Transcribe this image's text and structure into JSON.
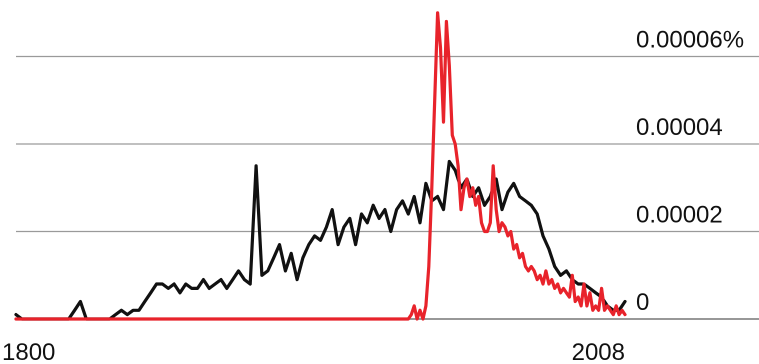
{
  "chart_data": {
    "type": "line",
    "x_tick_labels": [
      "1800",
      "2008"
    ],
    "x_range": [
      1800,
      2008
    ],
    "y_tick_labels": [
      "0",
      "0.00002",
      "0.00004",
      "0.00006%"
    ],
    "y_ticks": [
      0,
      2e-05,
      4e-05,
      6e-05
    ],
    "ylim": [
      0,
      7.1e-05
    ],
    "grid": true,
    "legend": "none",
    "series": [
      {
        "color": "#111111",
        "x": [
          1800,
          1802,
          1804,
          1806,
          1808,
          1810,
          1812,
          1814,
          1816,
          1818,
          1820,
          1822,
          1824,
          1826,
          1828,
          1830,
          1832,
          1834,
          1836,
          1838,
          1840,
          1842,
          1844,
          1846,
          1848,
          1850,
          1852,
          1854,
          1856,
          1858,
          1860,
          1862,
          1864,
          1866,
          1868,
          1870,
          1872,
          1874,
          1876,
          1878,
          1880,
          1882,
          1884,
          1886,
          1888,
          1890,
          1892,
          1894,
          1896,
          1898,
          1900,
          1902,
          1904,
          1906,
          1908,
          1910,
          1912,
          1914,
          1916,
          1918,
          1920,
          1922,
          1924,
          1926,
          1928,
          1930,
          1932,
          1934,
          1936,
          1938,
          1940,
          1942,
          1944,
          1946,
          1948,
          1950,
          1952,
          1954,
          1956,
          1958,
          1960,
          1962,
          1964,
          1966,
          1968,
          1970,
          1972,
          1974,
          1976,
          1978,
          1980,
          1982,
          1984,
          1986,
          1988,
          1990,
          1992,
          1994,
          1996,
          1998,
          2000,
          2002,
          2004,
          2006,
          2008
        ],
        "values": [
          1e-06,
          0.0,
          0.0,
          0.0,
          0.0,
          0.0,
          0.0,
          0.0,
          0.0,
          0.0,
          2e-06,
          4e-06,
          0.0,
          0.0,
          0.0,
          0.0,
          0.0,
          1e-06,
          2e-06,
          1e-06,
          2e-06,
          2e-06,
          4e-06,
          6e-06,
          8e-06,
          8e-06,
          7e-06,
          8e-06,
          6e-06,
          8e-06,
          7e-06,
          7e-06,
          9e-06,
          7e-06,
          8e-06,
          9e-06,
          7e-06,
          9e-06,
          1.1e-05,
          9e-06,
          8e-06,
          3.5e-05,
          1e-05,
          1.1e-05,
          1.4e-05,
          1.7e-05,
          1.1e-05,
          1.5e-05,
          9e-06,
          1.4e-05,
          1.7e-05,
          1.9e-05,
          1.8e-05,
          2.1e-05,
          2.5e-05,
          1.7e-05,
          2.1e-05,
          2.3e-05,
          1.7e-05,
          2.4e-05,
          2.2e-05,
          2.6e-05,
          2.3e-05,
          2.5e-05,
          2e-05,
          2.5e-05,
          2.7e-05,
          2.4e-05,
          2.8e-05,
          2.2e-05,
          3.1e-05,
          2.7e-05,
          2.8e-05,
          2.5e-05,
          3.6e-05,
          3.4e-05,
          3e-05,
          3.2e-05,
          2.8e-05,
          3e-05,
          2.6e-05,
          2.8e-05,
          3.2e-05,
          2.5e-05,
          2.9e-05,
          3.1e-05,
          2.8e-05,
          2.7e-05,
          2.6e-05,
          2.4e-05,
          1.9e-05,
          1.6e-05,
          1.2e-05,
          1e-05,
          1.1e-05,
          9e-06,
          8e-06,
          8e-06,
          7e-06,
          6e-06,
          5e-06,
          3e-06,
          2e-06,
          2e-06,
          4e-06
        ]
      },
      {
        "color": "#e8232b",
        "x": [
          1800,
          1880,
          1900,
          1910,
          1930,
          1932,
          1934,
          1935,
          1936,
          1937,
          1938,
          1939,
          1940,
          1941,
          1942,
          1943,
          1944,
          1945,
          1946,
          1947,
          1948,
          1949,
          1950,
          1951,
          1952,
          1953,
          1954,
          1955,
          1956,
          1957,
          1958,
          1959,
          1960,
          1961,
          1962,
          1963,
          1964,
          1965,
          1966,
          1967,
          1968,
          1969,
          1970,
          1971,
          1972,
          1973,
          1974,
          1975,
          1976,
          1977,
          1978,
          1979,
          1980,
          1981,
          1982,
          1983,
          1984,
          1985,
          1986,
          1987,
          1988,
          1989,
          1990,
          1991,
          1992,
          1993,
          1994,
          1995,
          1996,
          1997,
          1998,
          1999,
          2000,
          2001,
          2002,
          2003,
          2004,
          2005,
          2006,
          2007,
          2008
        ],
        "values": [
          0.0,
          0.0,
          0.0,
          0.0,
          0.0,
          0.0,
          0.0,
          1e-06,
          3e-06,
          0.0,
          2e-06,
          0.0,
          3e-06,
          1.2e-05,
          3e-05,
          5e-05,
          7e-05,
          6.2e-05,
          4.5e-05,
          6.8e-05,
          5.8e-05,
          4.2e-05,
          4e-05,
          3.5e-05,
          2.5e-05,
          3e-05,
          3.2e-05,
          2.8e-05,
          3e-05,
          2.6e-05,
          2.8e-05,
          2.2e-05,
          2e-05,
          2e-05,
          2.2e-05,
          3.5e-05,
          2.5e-05,
          2e-05,
          2.2e-05,
          2.1e-05,
          1.9e-05,
          2e-05,
          1.6e-05,
          1.7e-05,
          1.4e-05,
          1.5e-05,
          1.2e-05,
          1.1e-05,
          1.2e-05,
          1.1e-05,
          9e-06,
          1e-05,
          8e-06,
          1.1e-05,
          8e-06,
          9e-06,
          7e-06,
          8e-06,
          6e-06,
          7e-06,
          6e-06,
          5e-06,
          1e-05,
          4e-06,
          5e-06,
          3e-06,
          8e-06,
          3e-06,
          6e-06,
          2e-06,
          3e-06,
          2e-06,
          7e-06,
          2e-06,
          3e-06,
          2e-06,
          1e-06,
          3e-06,
          1e-06,
          2e-06,
          1e-06
        ]
      }
    ]
  }
}
